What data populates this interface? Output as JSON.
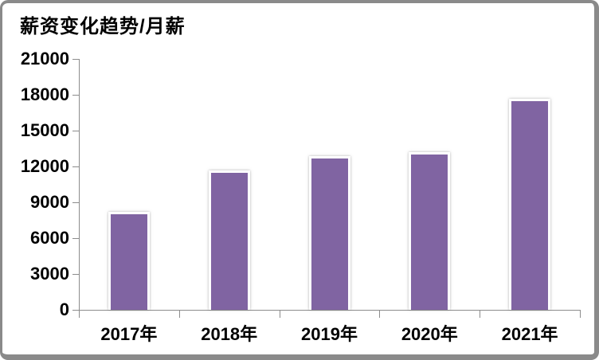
{
  "chart_data": {
    "type": "bar",
    "title": "薪资变化趋势/月薪",
    "categories": [
      "2017年",
      "2018年",
      "2019年",
      "2020年",
      "2021年"
    ],
    "values": [
      8200,
      11700,
      12900,
      13200,
      17700
    ],
    "xlabel": "",
    "ylabel": "",
    "ylim": [
      0,
      21000
    ],
    "ytick_step": 3000,
    "yticks": [
      0,
      3000,
      6000,
      9000,
      12000,
      15000,
      18000,
      21000
    ],
    "grid": false,
    "legend": "none",
    "bar_color": "#8064A2",
    "bar_border_color": "#FFFFFF",
    "axis_color": "#8C8C8C",
    "text_color": "#000000",
    "frame_border_color": "#8A8A8A",
    "background": "#FFFFFF"
  }
}
